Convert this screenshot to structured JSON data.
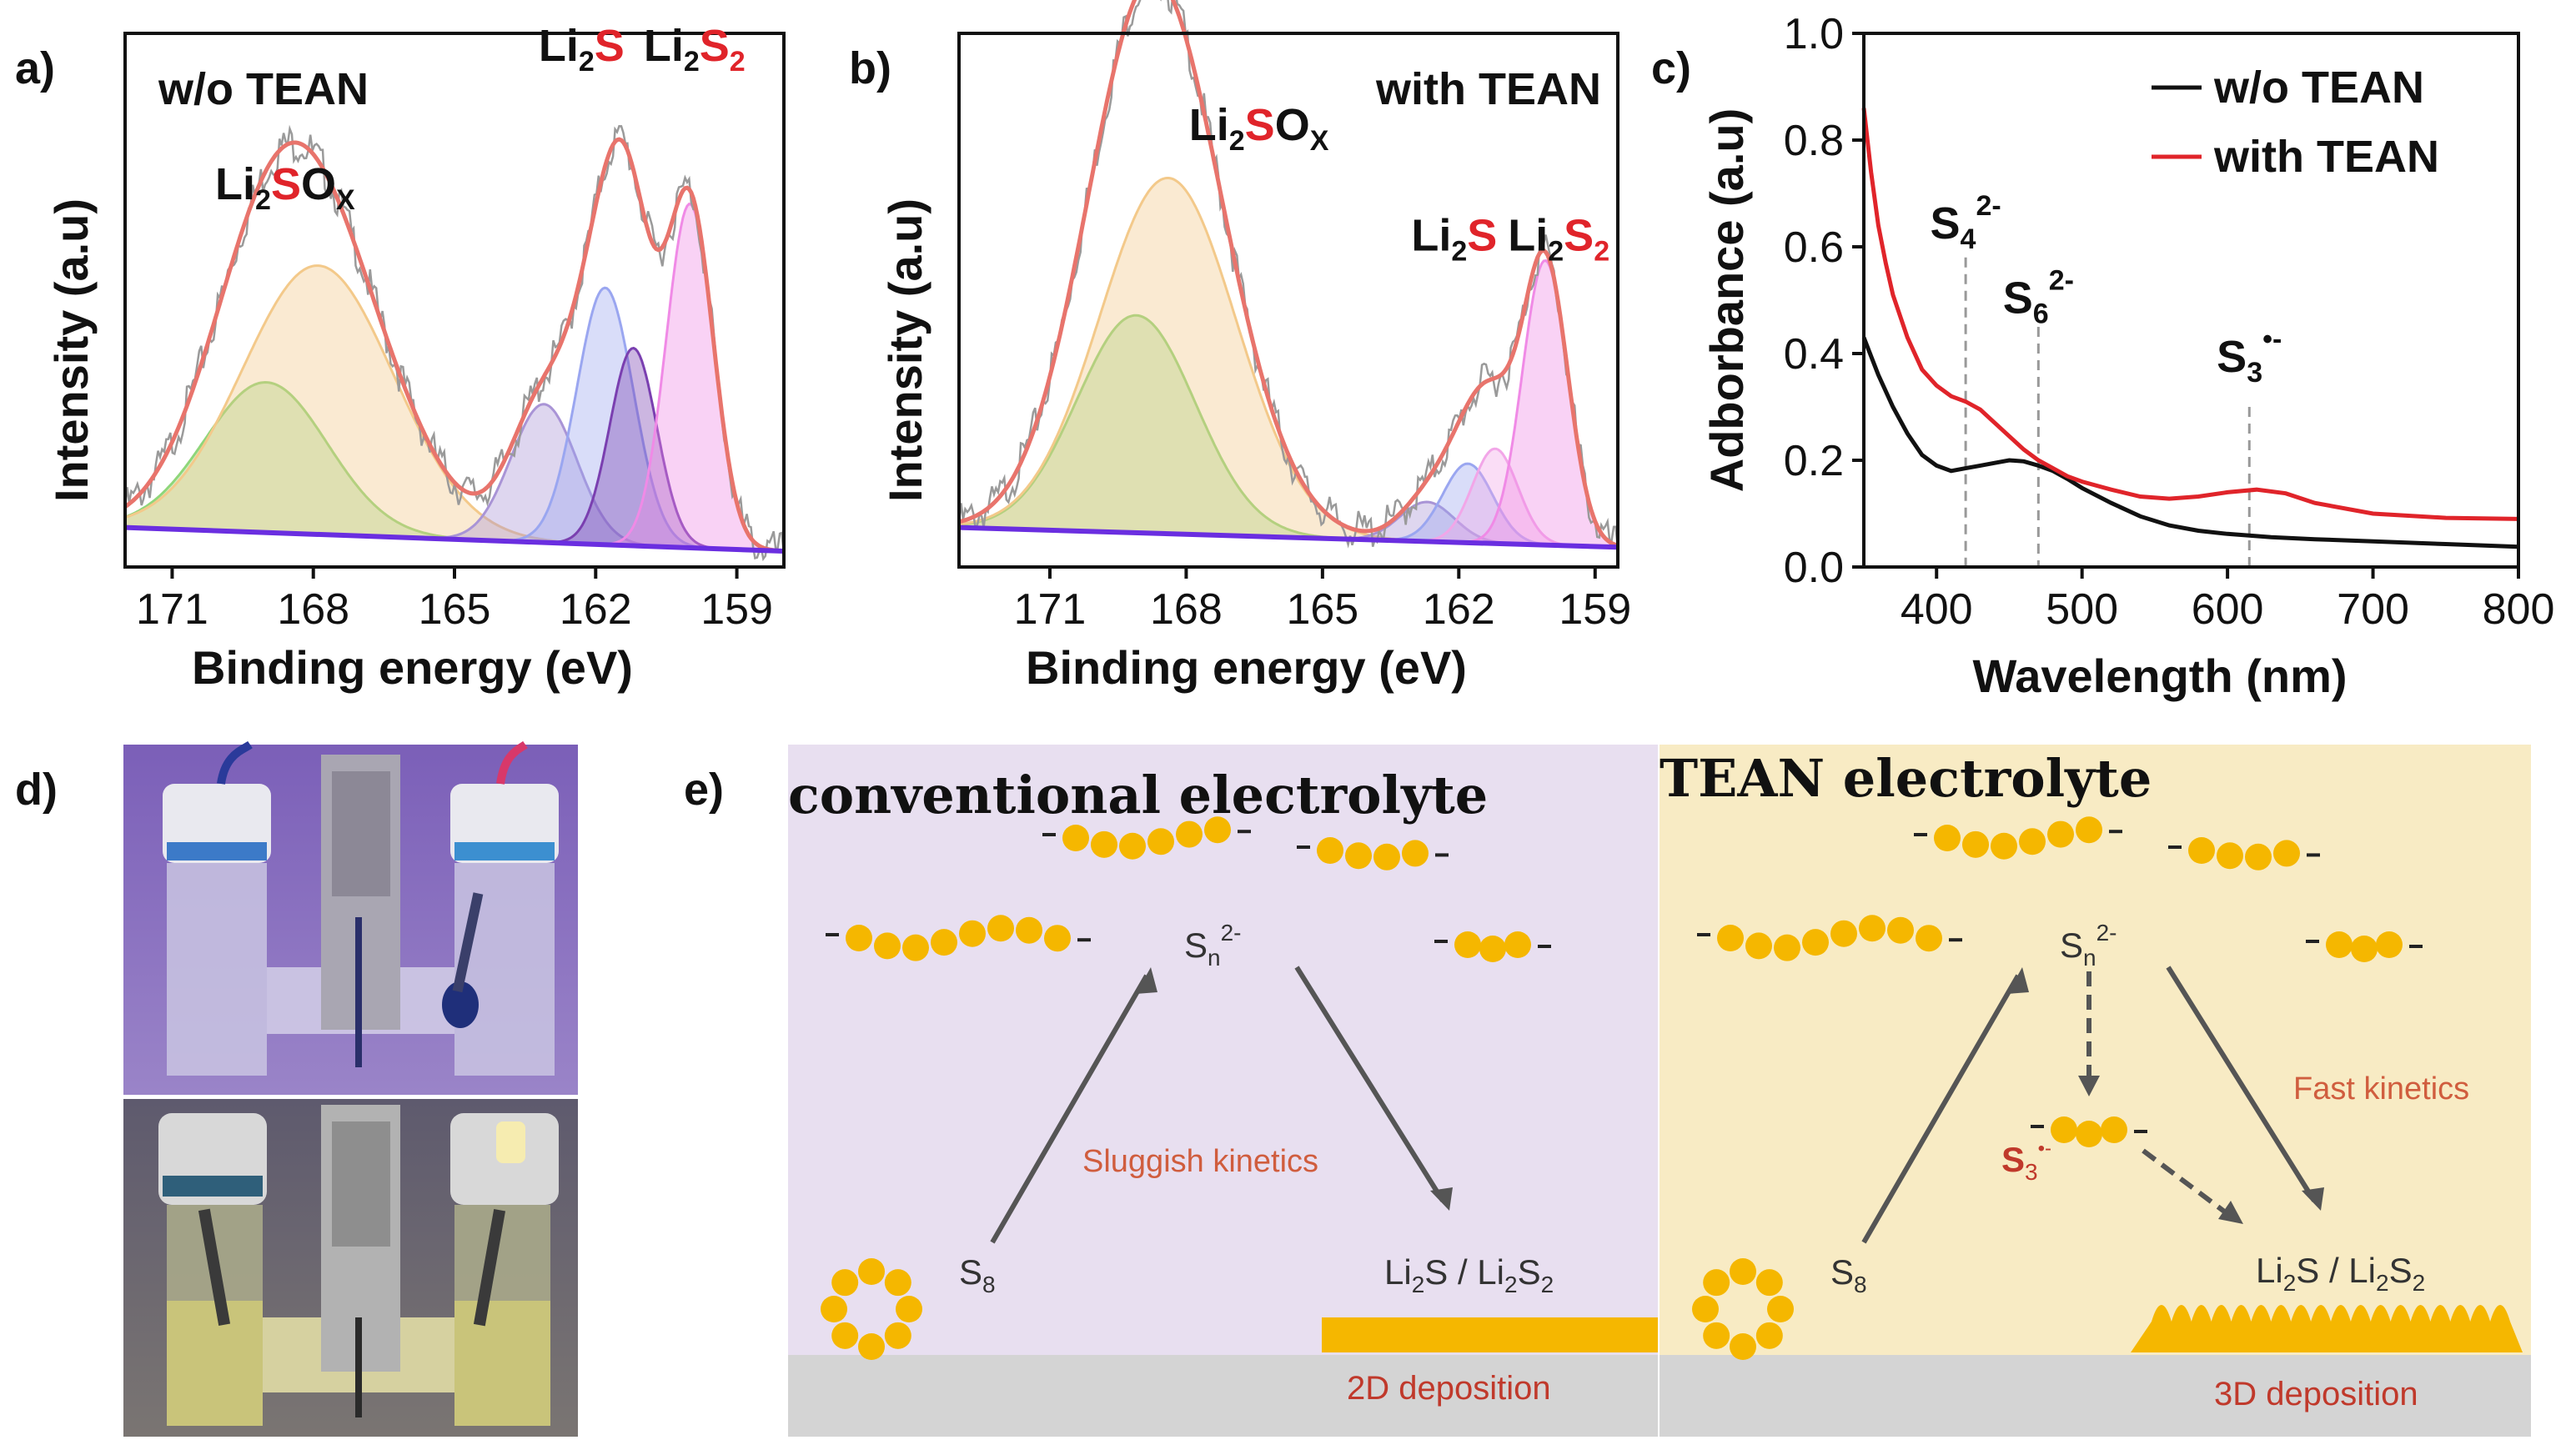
{
  "chart_data": [
    {
      "id": "a",
      "type": "line",
      "panel_label": "a)",
      "xlabel": "Binding energy (eV)",
      "ylabel": "Intensity (a.u)",
      "xlim": [
        172,
        158
      ],
      "xticks": [
        "171",
        "168",
        "165",
        "162",
        "159"
      ],
      "condition_label": "w/o TEAN",
      "baseline": [
        [
          172,
          0.1
        ],
        [
          158,
          0.04
        ]
      ],
      "components": [
        {
          "name": "Li2SOx (minor)",
          "color": "#8fd67a",
          "center": 169.0,
          "amp": 0.38,
          "sigma": 1.3
        },
        {
          "name": "Li2SOx",
          "color": "#f3c98a",
          "center": 167.9,
          "amp": 0.68,
          "sigma": 1.6
        },
        {
          "name": "Li2S (minor)",
          "color": "#a994d6",
          "center": 163.1,
          "amp": 0.35,
          "sigma": 0.7
        },
        {
          "name": "Li2S",
          "color": "#9aa6f0",
          "center": 161.8,
          "amp": 0.65,
          "sigma": 0.6
        },
        {
          "name": "Li2S (deep)",
          "color": "#7a3fb0",
          "center": 161.2,
          "amp": 0.5,
          "sigma": 0.5
        },
        {
          "name": "Li2S2",
          "color": "#f08ae6",
          "center": 160.0,
          "amp": 0.87,
          "sigma": 0.5
        }
      ],
      "annotations": [
        {
          "pre": "Li",
          "sub": "2",
          "mid": "S",
          "mid_red": true,
          "post": "O",
          "post_sub": "X",
          "x": 168.6,
          "y": 0.93
        },
        {
          "pre": "Li",
          "sub": "2",
          "mid": "S",
          "mid_red": true,
          "post": "",
          "post_sub": "",
          "x": 162.3,
          "y": 1.28
        },
        {
          "pre": "Li",
          "sub": "2",
          "mid": "S",
          "mid_red": true,
          "post": "",
          "post_sub": "2",
          "post_sub_red": true,
          "x": 159.9,
          "y": 1.28
        }
      ]
    },
    {
      "id": "b",
      "type": "line",
      "panel_label": "b)",
      "xlabel": "Binding energy (eV)",
      "ylabel": "Intensity (a.u)",
      "xlim": [
        173,
        158.5
      ],
      "xticks": [
        "171",
        "168",
        "165",
        "162",
        "159"
      ],
      "condition_label": "with TEAN",
      "baseline": [
        [
          173,
          0.1
        ],
        [
          158.5,
          0.05
        ]
      ],
      "components": [
        {
          "name": "Li2SOx (minor)",
          "color": "#8fd67a",
          "center": 169.1,
          "amp": 0.55,
          "sigma": 1.3
        },
        {
          "name": "Li2SOx",
          "color": "#f3c98a",
          "center": 168.4,
          "amp": 0.9,
          "sigma": 1.5
        },
        {
          "name": "Li2S (minor)",
          "color": "#a994d6",
          "center": 162.7,
          "amp": 0.1,
          "sigma": 0.6
        },
        {
          "name": "Li2S",
          "color": "#9aa6f0",
          "center": 161.8,
          "amp": 0.2,
          "sigma": 0.55
        },
        {
          "name": "Li2S (pink)",
          "color": "#f2a6e8",
          "center": 161.2,
          "amp": 0.24,
          "sigma": 0.5
        },
        {
          "name": "Li2S2",
          "color": "#f08ae6",
          "center": 160.1,
          "amp": 0.72,
          "sigma": 0.5
        }
      ],
      "annotations": [
        {
          "pre": "Li",
          "sub": "2",
          "mid": "S",
          "mid_red": true,
          "post": "O",
          "post_sub": "X",
          "x": 166.4,
          "y": 1.08
        },
        {
          "pre": "Li",
          "sub": "2",
          "mid": "S",
          "mid_red": true,
          "post": "",
          "post_sub": "",
          "x": 162.1,
          "y": 0.8
        },
        {
          "pre": "Li",
          "sub": "2",
          "mid": "S",
          "mid_red": true,
          "post": "",
          "post_sub": "2",
          "post_sub_red": true,
          "x": 159.8,
          "y": 0.8
        }
      ]
    },
    {
      "id": "c",
      "type": "line",
      "panel_label": "c)",
      "xlabel": "Wavelength (nm)",
      "ylabel": "Adborbance (a.u)",
      "xlim": [
        350,
        800
      ],
      "ylim": [
        0,
        1.0
      ],
      "xticks": [
        400,
        500,
        600,
        700,
        800
      ],
      "yticks": [
        0.0,
        0.2,
        0.4,
        0.6,
        0.8,
        1.0
      ],
      "yticklabels": [
        "0.0",
        "0.2",
        "0.4",
        "0.6",
        "0.8",
        "1.0"
      ],
      "series": [
        {
          "name": "w/o TEAN",
          "color": "#111111",
          "x": [
            350,
            360,
            370,
            380,
            390,
            400,
            410,
            420,
            430,
            440,
            450,
            460,
            470,
            480,
            490,
            500,
            520,
            540,
            560,
            580,
            600,
            630,
            660,
            700,
            750,
            800
          ],
          "y": [
            0.43,
            0.36,
            0.3,
            0.25,
            0.21,
            0.19,
            0.18,
            0.185,
            0.19,
            0.195,
            0.2,
            0.198,
            0.19,
            0.18,
            0.165,
            0.148,
            0.12,
            0.095,
            0.078,
            0.068,
            0.062,
            0.056,
            0.052,
            0.048,
            0.043,
            0.038
          ]
        },
        {
          "name": "with TEAN",
          "color": "#e0242a",
          "x": [
            350,
            355,
            360,
            365,
            370,
            380,
            390,
            400,
            410,
            420,
            430,
            440,
            450,
            460,
            470,
            480,
            490,
            500,
            520,
            540,
            560,
            580,
            600,
            620,
            640,
            660,
            700,
            750,
            800
          ],
          "y": [
            0.86,
            0.74,
            0.64,
            0.57,
            0.51,
            0.43,
            0.37,
            0.34,
            0.32,
            0.31,
            0.295,
            0.27,
            0.245,
            0.22,
            0.2,
            0.185,
            0.17,
            0.16,
            0.145,
            0.132,
            0.128,
            0.132,
            0.14,
            0.145,
            0.138,
            0.12,
            0.1,
            0.092,
            0.09
          ]
        }
      ],
      "markers": [
        {
          "label": "S",
          "sub": "4",
          "sup": "2-",
          "x": 420,
          "y_top": 0.58,
          "label_y": 0.6
        },
        {
          "label": "S",
          "sub": "6",
          "sup": "2-",
          "x": 470,
          "y_top": 0.45,
          "label_y": 0.46
        },
        {
          "label": "S",
          "sub": "3",
          "sup": "•-",
          "x": 615,
          "y_top": 0.3,
          "label_y": 0.35
        }
      ],
      "legend_position": "top-right"
    }
  ],
  "panel_d": {
    "label": "d)"
  },
  "panel_e": {
    "label": "e)",
    "left": {
      "title": "conventional electrolyte",
      "sn": "S",
      "sn_sub": "n",
      "sn_sup": "2-",
      "s8": "S",
      "s8_sub": "8",
      "product_pre": "Li",
      "product_sub1": "2",
      "product_mid": "S / Li",
      "product_sub2": "2",
      "product_s": "S",
      "product_sub3": "2",
      "kinetics": "Sluggish kinetics",
      "deposition": "2D  deposition"
    },
    "right": {
      "title": "TEAN electrolyte",
      "sn": "S",
      "sn_sub": "n",
      "sn_sup": "2-",
      "s8": "S",
      "s8_sub": "8",
      "s3": "S",
      "s3_sub": "3",
      "s3_sup": "•-",
      "product_pre": "Li",
      "product_sub1": "2",
      "product_mid": "S / Li",
      "product_sub2": "2",
      "product_s": "S",
      "product_sub3": "2",
      "kinetics": "Fast kinetics",
      "deposition": "3D  deposition"
    },
    "colors": {
      "left_bg": "#e8dff0",
      "right_bg": "#f8ebc4",
      "ground": "#d4d4d4",
      "sulfur": "#f5b700",
      "arrow": "#555555"
    }
  }
}
